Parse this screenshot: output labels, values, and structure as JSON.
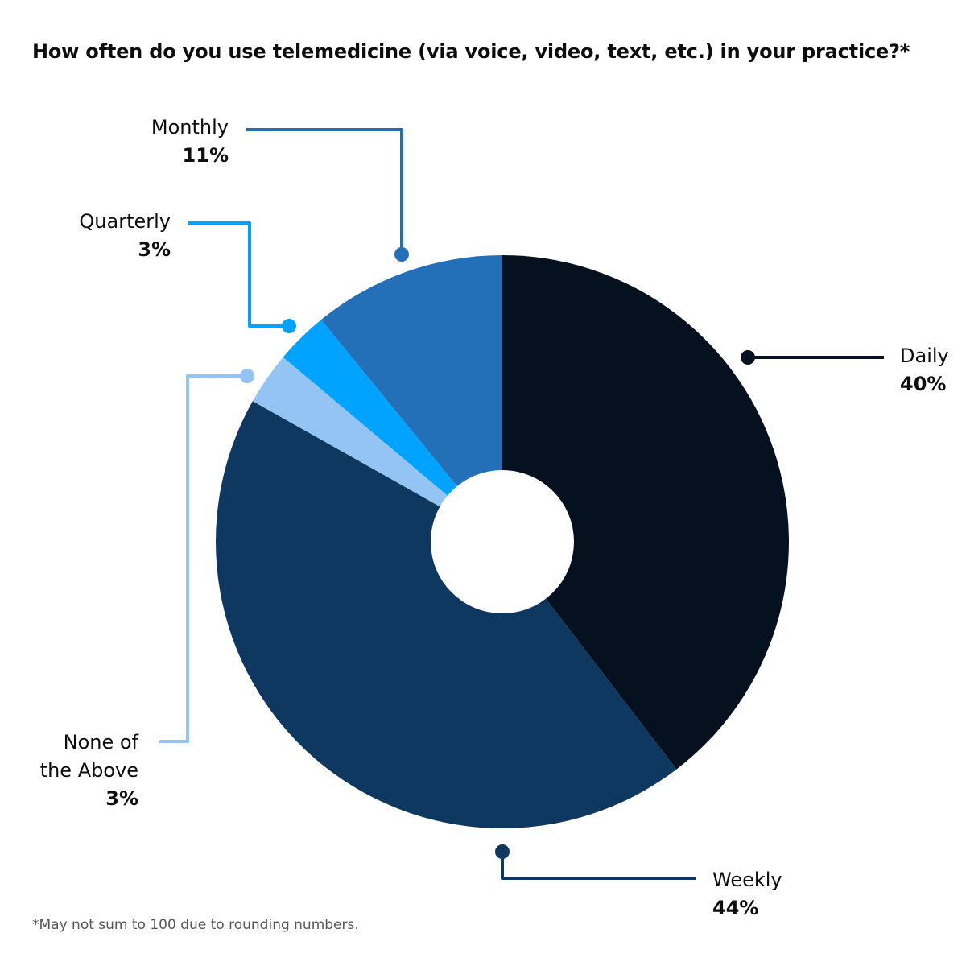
{
  "title": "How often do you use telemedicine (via voice, video, text, etc.) in your practice?*",
  "footnote": "*May not sum to 100 due to rounding numbers.",
  "chart_data": {
    "type": "pie",
    "style": "donut",
    "title": "How often do you use telemedicine (via voice, video, text, etc.) in your practice?*",
    "slices": [
      {
        "label": "Daily",
        "value": 40,
        "value_label": "40%",
        "color": "#05111f"
      },
      {
        "label": "Weekly",
        "value": 44,
        "value_label": "44%",
        "color": "#0e3860"
      },
      {
        "label": "None of the Above",
        "value": 3,
        "value_label": "3%",
        "color": "#93c4f3"
      },
      {
        "label": "Quarterly",
        "value": 3,
        "value_label": "3%",
        "color": "#00a3ff"
      },
      {
        "label": "Monthly",
        "value": 11,
        "value_label": "11%",
        "color": "#2470b8"
      }
    ],
    "label_lines": {
      "Daily": "Daily",
      "Weekly": "Weekly",
      "None of the Above": [
        "None of",
        "the Above"
      ],
      "Quarterly": "Quarterly",
      "Monthly": "Monthly"
    }
  }
}
